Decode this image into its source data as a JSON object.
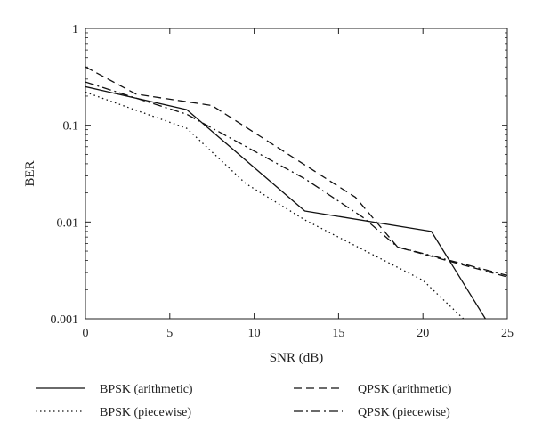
{
  "chart_data": {
    "type": "line",
    "title": "",
    "xlabel": "SNR (dB)",
    "ylabel": "BER",
    "xlim": [
      0,
      25
    ],
    "ylim": [
      0.001,
      1
    ],
    "yscale": "log",
    "grid": false,
    "legend_position": "bottom",
    "x_ticks": [
      0,
      5,
      10,
      15,
      20,
      25
    ],
    "x_tick_labels": [
      "0",
      "5",
      "10",
      "15",
      "20",
      "25"
    ],
    "y_ticks": [
      0.001,
      0.01,
      0.1,
      1
    ],
    "y_tick_labels": [
      "0.001",
      "0.01",
      "0.1",
      "1"
    ],
    "series": [
      {
        "name": "BPSK (arithmetic)",
        "style": "solid",
        "color": "#111111",
        "x": [
          0,
          6,
          13,
          20.5,
          23.7
        ],
        "y": [
          0.25,
          0.145,
          0.013,
          0.008,
          0.001
        ]
      },
      {
        "name": "QPSK (arithmetic)",
        "style": "dashed",
        "color": "#111111",
        "x": [
          0,
          3,
          7.5,
          16,
          18.5,
          25
        ],
        "y": [
          0.4,
          0.21,
          0.16,
          0.018,
          0.0055,
          0.0027
        ]
      },
      {
        "name": "BPSK (piecewise)",
        "style": "dotted",
        "color": "#111111",
        "x": [
          0,
          6,
          9.5,
          13,
          20,
          22.4
        ],
        "y": [
          0.22,
          0.093,
          0.025,
          0.0105,
          0.0025,
          0.001
        ]
      },
      {
        "name": "QPSK (piecewise)",
        "style": "dashdot",
        "color": "#111111",
        "x": [
          0,
          6,
          13,
          16.5,
          18.5,
          20.5,
          25
        ],
        "y": [
          0.28,
          0.13,
          0.028,
          0.011,
          0.0055,
          0.0045,
          0.0028
        ]
      }
    ]
  }
}
